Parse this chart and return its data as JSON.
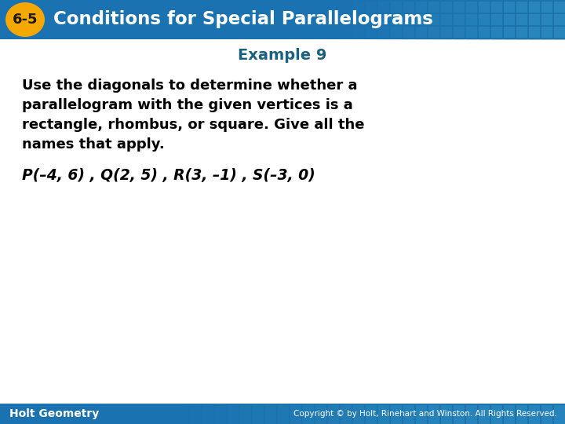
{
  "header_text": "Conditions for Special Parallelograms",
  "header_num": "6-5",
  "example_label": "Example 9",
  "body_line1": "Use the diagonals to determine whether a",
  "body_line2": "parallelogram with the given vertices is a",
  "body_line3": "rectangle, rhombus, or square. Give all the",
  "body_line4": "names that apply.",
  "coords_text": "P(–4, 6) , Q(2, 5) , R(3, –1) , S(–3, 0)",
  "footer_left": "Holt Geometry",
  "footer_right": "Copyright © by Holt, Rinehart and Winston. All Rights Reserved.",
  "header_bg_color": "#1a72b0",
  "badge_color": "#f5a800",
  "badge_text_color": "#1a1a00",
  "header_text_color": "#ffffff",
  "example_text_color": "#1a6080",
  "body_text_color": "#000000",
  "footer_bg_color": "#1a72b0",
  "footer_text_color": "#ffffff",
  "bg_color": "#ffffff",
  "tile_color": "#3a9fcc",
  "tile_border": "#1a6090"
}
